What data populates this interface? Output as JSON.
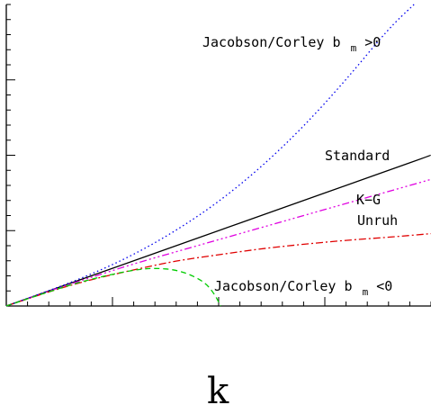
{
  "chart_data": {
    "type": "line",
    "title": "",
    "xlabel": "k",
    "ylabel": "",
    "xlim": [
      0,
      1
    ],
    "ylim": [
      0,
      1
    ],
    "grid": false,
    "series": [
      {
        "key": "standard",
        "color": "#000000",
        "dash": "solid",
        "x": [
          0,
          0.1,
          0.2,
          0.3,
          0.4,
          0.5,
          0.6,
          0.7,
          0.8,
          0.9,
          1.0
        ],
        "y": [
          0,
          0.05,
          0.1,
          0.15,
          0.2,
          0.25,
          0.3,
          0.35,
          0.4,
          0.45,
          0.5
        ]
      },
      {
        "key": "kg",
        "color": "#e000e0",
        "dash": "dashdotdotdot",
        "x": [
          0,
          0.1,
          0.2,
          0.3,
          0.4,
          0.5,
          0.6,
          0.7,
          0.8,
          0.9,
          1.0
        ],
        "y": [
          0,
          0.05,
          0.095,
          0.14,
          0.18,
          0.22,
          0.26,
          0.3,
          0.34,
          0.38,
          0.42
        ]
      },
      {
        "key": "unruh",
        "color": "#e00000",
        "dash": "dashdot",
        "x": [
          0,
          0.1,
          0.2,
          0.3,
          0.4,
          0.5,
          0.6,
          0.7,
          0.8,
          0.9,
          1.0
        ],
        "y": [
          0,
          0.048,
          0.088,
          0.12,
          0.15,
          0.17,
          0.19,
          0.205,
          0.218,
          0.228,
          0.24
        ]
      },
      {
        "key": "jacobson_pos",
        "color": "#0000ee",
        "dash": "dotted",
        "x": [
          0,
          0.1,
          0.2,
          0.3,
          0.4,
          0.5,
          0.6,
          0.7,
          0.8,
          0.9,
          0.96
        ],
        "y": [
          0,
          0.05,
          0.105,
          0.17,
          0.25,
          0.345,
          0.46,
          0.595,
          0.75,
          0.92,
          1.0
        ]
      },
      {
        "key": "jacobson_neg",
        "color": "#00cc00",
        "dash": "dashed",
        "x": [
          0,
          0.1,
          0.2,
          0.3,
          0.35,
          0.4,
          0.44,
          0.47,
          0.49,
          0.505
        ],
        "y": [
          0,
          0.048,
          0.09,
          0.12,
          0.126,
          0.12,
          0.1,
          0.075,
          0.04,
          0.0
        ]
      }
    ],
    "annotations": {
      "jacobson_pos_main": "Jacobson/Corley b",
      "jacobson_pos_sub": "m",
      "jacobson_pos_tail": ">0",
      "standard": "Standard",
      "kg": "K−G",
      "unruh": "Unruh",
      "jacobson_neg_main": "Jacobson/Corley b",
      "jacobson_neg_sub": "m",
      "jacobson_neg_tail": "<0"
    }
  }
}
